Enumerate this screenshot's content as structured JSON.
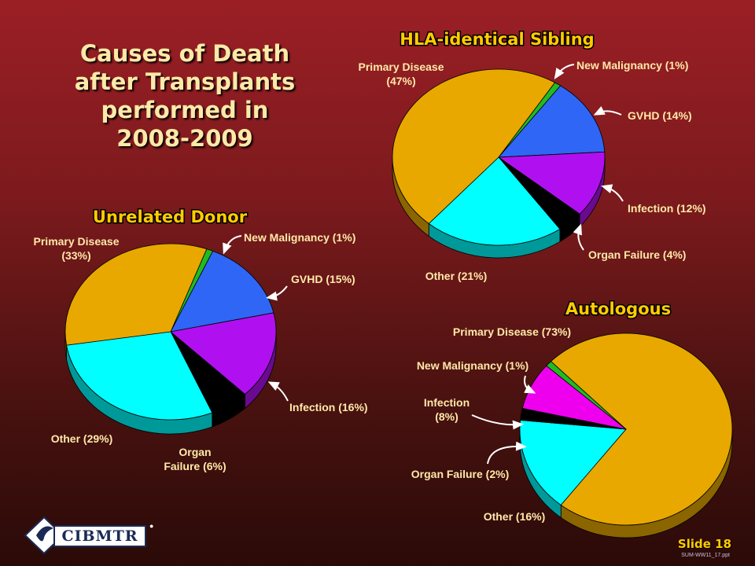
{
  "title": "Causes of Death\nafter Transplants\nperformed in\n2008-2009",
  "slide_number": "Slide 18",
  "file_ref": "SUM-WW11_17.ppt",
  "logo_text": "CIBMTR",
  "colors": {
    "primary_disease": "#e8a800",
    "new_malignancy": "#22bb22",
    "gvhd": "#2f66f5",
    "infection": "#b010f0",
    "infection_auto": "#ee00ee",
    "organ_failure": "#000000",
    "other": "#00ffff",
    "title": "#ffcc00"
  },
  "chart_data": [
    {
      "type": "pie",
      "title": "HLA-identical Sibling",
      "categories": [
        "New Malignancy",
        "GVHD",
        "Infection",
        "Organ Failure",
        "Other",
        "Primary Disease"
      ],
      "values": [
        1,
        14,
        12,
        4,
        21,
        47
      ],
      "labels": [
        "New Malignancy (1%)",
        "GVHD (14%)",
        "Infection (12%)",
        "Organ Failure (4%)",
        "Other (21%)",
        "Primary Disease\n(47%)"
      ]
    },
    {
      "type": "pie",
      "title": "Unrelated Donor",
      "categories": [
        "New Malignancy",
        "GVHD",
        "Infection",
        "Organ Failure",
        "Other",
        "Primary Disease"
      ],
      "values": [
        1,
        15,
        16,
        6,
        29,
        33
      ],
      "labels": [
        "New Malignancy (1%)",
        "GVHD (15%)",
        "Infection (16%)",
        "Organ\nFailure (6%)",
        "Other (29%)",
        "Primary Disease\n(33%)"
      ]
    },
    {
      "type": "pie",
      "title": "Autologous",
      "categories": [
        "Primary Disease",
        "Other",
        "Organ Failure",
        "Infection",
        "New Malignancy"
      ],
      "values": [
        73,
        16,
        2,
        8,
        1
      ],
      "labels": [
        "Primary Disease (73%)",
        "Other (16%)",
        "Organ Failure (2%)",
        "Infection\n(8%)",
        "New Malignancy (1%)"
      ]
    }
  ]
}
